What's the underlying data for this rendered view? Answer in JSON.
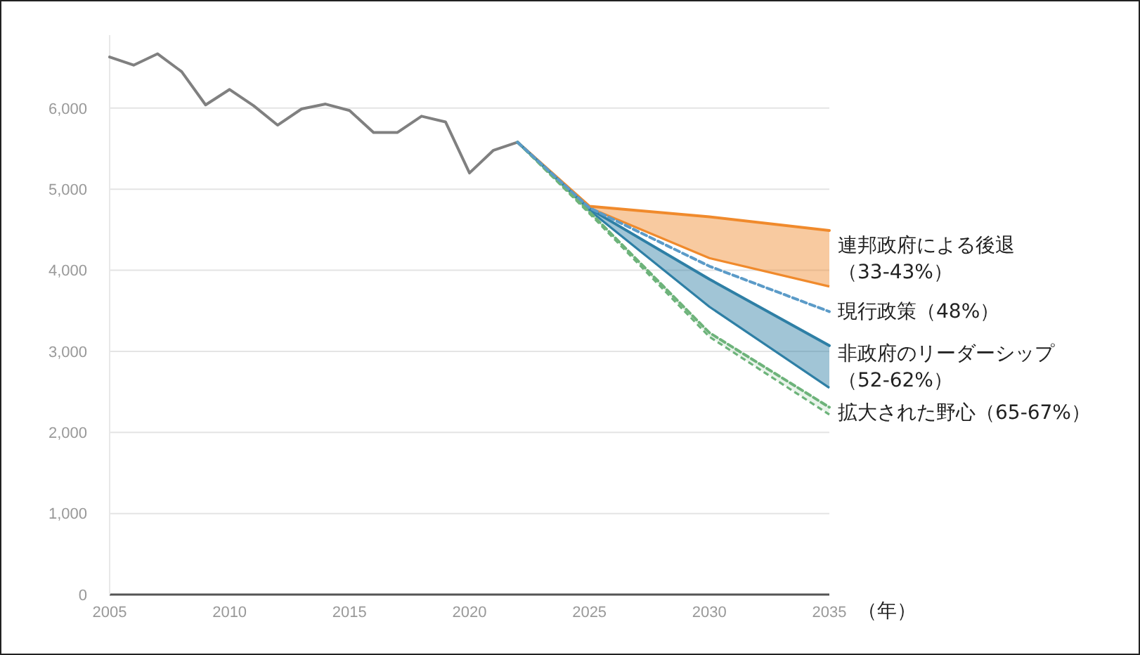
{
  "chart_data": {
    "type": "line",
    "xlabel": "（年）",
    "xlim": [
      2005,
      2035
    ],
    "xticks": [
      2005,
      2010,
      2015,
      2020,
      2025,
      2030,
      2035
    ],
    "ylim": [
      0,
      6900
    ],
    "yticks": [
      0,
      {
        "value": 1000,
        "label": "1,000"
      },
      {
        "value": 2000,
        "label": "2,000"
      },
      {
        "value": 3000,
        "label": "3,000"
      },
      {
        "value": 4000,
        "label": "4,000"
      },
      {
        "value": 5000,
        "label": "5,000"
      },
      {
        "value": 6000,
        "label": "6,000"
      }
    ],
    "grid": "y",
    "series": [
      {
        "color": "#808080",
        "line_style": "solid",
        "x": [
          2005,
          2006,
          2007,
          2008,
          2009,
          2010,
          2011,
          2012,
          2013,
          2014,
          2015,
          2016,
          2017,
          2018,
          2019,
          2020,
          2021,
          2022
        ],
        "values": [
          6630,
          6530,
          6670,
          6450,
          6040,
          6230,
          6030,
          5790,
          5990,
          6050,
          5970,
          5700,
          5700,
          5900,
          5830,
          5200,
          5480,
          5580
        ]
      },
      {
        "name": "連邦政府による後退（33-43%）",
        "color": "#f08a2c",
        "line_style": "solid",
        "x": [
          2022,
          2025,
          2030,
          2035
        ],
        "values": [
          5580,
          4790,
          4660,
          4490
        ],
        "upper": [
          5580,
          4790,
          4660,
          4490
        ],
        "lower": [
          5580,
          4770,
          4150,
          3800
        ]
      },
      {
        "name": "現行政策（48%）",
        "color": "#5b9bc8",
        "line_style": "dashed",
        "x": [
          2022,
          2025,
          2030,
          2035
        ],
        "values": [
          5580,
          4770,
          4050,
          3490
        ]
      },
      {
        "name": "非政府のリーダーシップ（52-62%）",
        "color": "#2e7fa5",
        "line_style": "solid",
        "x": [
          2022,
          2025,
          2030,
          2035
        ],
        "values": [
          5580,
          4760,
          3890,
          3070
        ],
        "upper": [
          5580,
          4760,
          3890,
          3070
        ],
        "lower": [
          5580,
          4740,
          3550,
          2550
        ]
      },
      {
        "name": "拡大された野心（65-67%）",
        "color": "#6db37a",
        "line_style": "dashed",
        "x": [
          2022,
          2025,
          2030,
          2035
        ],
        "values": [
          5580,
          4720,
          3230,
          2310
        ],
        "upper": [
          5580,
          4720,
          3230,
          2310
        ],
        "lower": [
          5580,
          4700,
          3180,
          2220
        ]
      }
    ]
  }
}
